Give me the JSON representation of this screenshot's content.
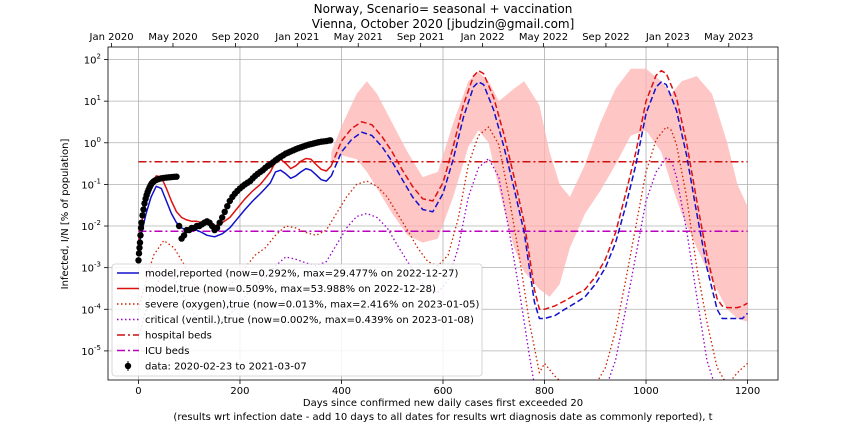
{
  "chart_data": {
    "type": "line",
    "title_line1": "Norway, Scenario= seasonal + vaccination",
    "title_line2": "Vienna, October 2020 [jbudzin@gmail.com]",
    "xlabel_line1": "Days since confirmed new daily cases first exceeded 20",
    "xlabel_line2": "(results wrt infection date - add 10 days to all dates for results wrt diagnosis date as commonly reported), t",
    "ylabel": "Infected, I/N [% of population]",
    "xlim": [
      -60,
      1260
    ],
    "ylim": [
      2e-06,
      200
    ],
    "yscale": "log",
    "grid": true,
    "legend_position": "lower-left",
    "x_ticks": [
      0,
      200,
      400,
      600,
      800,
      1000,
      1200
    ],
    "y_ticks": [
      {
        "value": 1e-05,
        "label": "10^-5"
      },
      {
        "value": 0.0001,
        "label": "10^-4"
      },
      {
        "value": 0.001,
        "label": "10^-3"
      },
      {
        "value": 0.01,
        "label": "10^-2"
      },
      {
        "value": 0.1,
        "label": "10^-1"
      },
      {
        "value": 1,
        "label": "10^0"
      },
      {
        "value": 10,
        "label": "10^1"
      },
      {
        "value": 100,
        "label": "10^2"
      }
    ],
    "top_axis_ticks": [
      {
        "label": "Jan 2020",
        "day": -53
      },
      {
        "label": "May 2020",
        "day": 68
      },
      {
        "label": "Sep 2020",
        "day": 191
      },
      {
        "label": "Jan 2021",
        "day": 313
      },
      {
        "label": "May 2021",
        "day": 433
      },
      {
        "label": "Sep 2021",
        "day": 556
      },
      {
        "label": "Jan 2022",
        "day": 678
      },
      {
        "label": "May 2022",
        "day": 798
      },
      {
        "label": "Sep 2022",
        "day": 921
      },
      {
        "label": "Jan 2023",
        "day": 1043
      },
      {
        "label": "May 2023",
        "day": 1163
      }
    ],
    "horizontal_lines": [
      {
        "name": "hospital beds",
        "value": 0.35,
        "color": "#cc1111"
      },
      {
        "name": "ICU beds",
        "value": 0.0075,
        "color": "#bb00bb"
      }
    ],
    "band": {
      "color": "#ffb3b3",
      "x": [
        380,
        400,
        430,
        450,
        470,
        500,
        530,
        560,
        590,
        620,
        650,
        670,
        690,
        710,
        740,
        760,
        790,
        810,
        830,
        850,
        880,
        910,
        940,
        970,
        1000,
        1030,
        1050,
        1070,
        1100,
        1130,
        1160,
        1180,
        1200
      ],
      "upper": [
        0.6,
        2.5,
        15,
        30,
        15,
        3,
        0.6,
        0.15,
        0.2,
        3,
        30,
        50,
        30,
        10,
        20,
        30,
        8,
        0.6,
        0.1,
        0.05,
        0.3,
        3,
        20,
        60,
        60,
        30,
        15,
        30,
        40,
        15,
        1,
        0.1,
        0.03
      ],
      "lower": [
        0.3,
        0.5,
        0.4,
        0.2,
        0.08,
        0.02,
        0.006,
        0.004,
        0.005,
        0.05,
        0.8,
        2,
        1,
        0.08,
        0.003,
        0.0008,
        0.0003,
        0.0002,
        0.0004,
        0.003,
        0.02,
        0.07,
        0.3,
        1.5,
        2,
        0.6,
        0.1,
        0.02,
        0.003,
        0.0005,
        0.0001,
        6e-05,
        5e-05
      ]
    },
    "series": [
      {
        "name": "model,reported (now=0.292%, max=29.477% on 2022-12-27)",
        "color": "#1111cc",
        "style": "solid",
        "x": [
          0,
          5,
          15,
          25,
          35,
          45,
          55,
          65,
          75,
          85,
          95,
          105,
          115,
          125,
          135,
          150,
          165,
          180,
          195,
          210,
          225,
          240,
          250,
          260,
          270,
          280,
          290,
          300,
          310,
          320,
          330,
          340,
          350,
          360,
          370,
          380
        ],
        "y": [
          0.003,
          0.006,
          0.02,
          0.05,
          0.09,
          0.08,
          0.04,
          0.02,
          0.012,
          0.009,
          0.008,
          0.008,
          0.008,
          0.007,
          0.006,
          0.0055,
          0.0065,
          0.009,
          0.015,
          0.025,
          0.04,
          0.06,
          0.08,
          0.11,
          0.2,
          0.22,
          0.18,
          0.14,
          0.16,
          0.2,
          0.24,
          0.22,
          0.17,
          0.13,
          0.12,
          0.16
        ]
      },
      {
        "name": "model,true (now=0.509%, max=53.988% on 2022-12-28)",
        "color": "#dd1111",
        "style": "solid",
        "x": [
          0,
          5,
          15,
          25,
          35,
          45,
          55,
          65,
          75,
          85,
          95,
          105,
          115,
          125,
          135,
          150,
          165,
          180,
          195,
          210,
          225,
          240,
          250,
          260,
          270,
          280,
          290,
          300,
          310,
          320,
          330,
          340,
          350,
          360,
          370,
          380
        ],
        "y": [
          0.004,
          0.01,
          0.04,
          0.1,
          0.16,
          0.15,
          0.08,
          0.04,
          0.022,
          0.016,
          0.014,
          0.013,
          0.013,
          0.012,
          0.011,
          0.01,
          0.012,
          0.016,
          0.027,
          0.045,
          0.07,
          0.1,
          0.14,
          0.2,
          0.35,
          0.4,
          0.32,
          0.24,
          0.28,
          0.36,
          0.42,
          0.4,
          0.3,
          0.23,
          0.21,
          0.28
        ]
      },
      {
        "name": "model,reported projection",
        "color": "#1111cc",
        "style": "dashed",
        "x": [
          380,
          400,
          420,
          440,
          460,
          480,
          500,
          520,
          540,
          560,
          580,
          600,
          620,
          640,
          660,
          670,
          680,
          700,
          720,
          740,
          760,
          770,
          780,
          790,
          800,
          820,
          840,
          860,
          880,
          900,
          920,
          940,
          960,
          980,
          1000,
          1020,
          1030,
          1040,
          1060,
          1080,
          1100,
          1120,
          1140,
          1150,
          1160,
          1170,
          1180,
          1190,
          1200
        ],
        "y": [
          0.16,
          0.6,
          1.2,
          1.8,
          1.5,
          0.8,
          0.35,
          0.13,
          0.05,
          0.025,
          0.022,
          0.06,
          0.4,
          4,
          22,
          29,
          25,
          6,
          0.8,
          0.08,
          0.007,
          0.001,
          0.00015,
          6e-05,
          6e-05,
          7e-05,
          0.0001,
          0.00014,
          0.0002,
          0.0004,
          0.001,
          0.004,
          0.03,
          0.3,
          5,
          22,
          29,
          25,
          6,
          0.5,
          0.02,
          0.001,
          0.0001,
          6e-05,
          6e-05,
          6e-05,
          6e-05,
          6e-05,
          8e-05
        ]
      },
      {
        "name": "model,true projection",
        "color": "#dd1111",
        "style": "dashed",
        "x": [
          380,
          400,
          420,
          440,
          460,
          480,
          500,
          520,
          540,
          560,
          580,
          600,
          620,
          640,
          660,
          670,
          680,
          700,
          720,
          740,
          760,
          770,
          780,
          790,
          800,
          820,
          840,
          860,
          880,
          900,
          920,
          940,
          960,
          980,
          1000,
          1020,
          1030,
          1040,
          1060,
          1080,
          1100,
          1120,
          1140,
          1150,
          1160,
          1170,
          1180,
          1190,
          1200
        ],
        "y": [
          0.28,
          1.1,
          2.2,
          3.2,
          2.7,
          1.4,
          0.6,
          0.22,
          0.09,
          0.045,
          0.04,
          0.11,
          0.8,
          8,
          40,
          54,
          46,
          12,
          1.6,
          0.15,
          0.012,
          0.002,
          0.0003,
          0.0001,
          0.0001,
          0.00012,
          0.00016,
          0.00022,
          0.0003,
          0.0006,
          0.0016,
          0.007,
          0.06,
          0.6,
          10,
          42,
          54,
          46,
          12,
          1,
          0.04,
          0.002,
          0.00018,
          0.00012,
          0.00011,
          0.00011,
          0.00011,
          0.00012,
          0.00014
        ]
      },
      {
        "name": "severe (oxygen),true (now=0.013%, max=2.416% on 2023-01-05)",
        "color": "#cc2200",
        "style": "dotted",
        "x": [
          0,
          10,
          20,
          30,
          50,
          70,
          90,
          110,
          130,
          150,
          170,
          190,
          210,
          230,
          250,
          270,
          290,
          310,
          330,
          350,
          370,
          390,
          410,
          430,
          450,
          470,
          490,
          510,
          530,
          550,
          570,
          590,
          610,
          630,
          650,
          670,
          690,
          710,
          730,
          750,
          770,
          790,
          800,
          820,
          840,
          860,
          880,
          900,
          920,
          940,
          960,
          980,
          1000,
          1020,
          1040,
          1050,
          1060,
          1080,
          1100,
          1120,
          1140,
          1160,
          1180,
          1200
        ],
        "y": [
          0.0001,
          0.0003,
          0.0008,
          0.002,
          0.0045,
          0.003,
          0.0012,
          0.0004,
          0.00025,
          0.00025,
          0.0003,
          0.0005,
          0.001,
          0.002,
          0.003,
          0.006,
          0.01,
          0.009,
          0.007,
          0.006,
          0.008,
          0.02,
          0.05,
          0.1,
          0.12,
          0.09,
          0.05,
          0.02,
          0.008,
          0.003,
          0.0014,
          0.0011,
          0.002,
          0.015,
          0.3,
          1.5,
          2.4,
          0.9,
          0.05,
          0.002,
          5e-05,
          3e-06,
          5e-06,
          2.5e-06,
          1.5e-06,
          1e-06,
          1e-06,
          1.5e-06,
          4e-06,
          3e-05,
          0.0005,
          0.01,
          0.2,
          1.2,
          2.4,
          2,
          0.9,
          0.05,
          0.001,
          5e-05,
          4e-06,
          1.5e-06,
          3e-06,
          5e-06
        ]
      },
      {
        "name": "critical (ventil.),true (now=0.002%, max=0.439% on 2023-01-08)",
        "color": "#9900cc",
        "style": "dotted",
        "x": [
          0,
          10,
          20,
          30,
          50,
          70,
          90,
          110,
          130,
          150,
          170,
          190,
          210,
          230,
          250,
          270,
          290,
          310,
          330,
          350,
          370,
          390,
          410,
          430,
          450,
          470,
          490,
          510,
          530,
          550,
          570,
          590,
          610,
          630,
          650,
          670,
          690,
          710,
          730,
          750,
          770,
          780,
          800,
          820,
          840,
          860,
          880,
          900,
          920,
          940,
          960,
          980,
          1000,
          1020,
          1040,
          1050,
          1060,
          1080,
          1100,
          1120,
          1140,
          1160,
          1180,
          1200
        ],
        "y": [
          2e-05,
          6e-05,
          0.00015,
          0.0003,
          0.0008,
          0.0006,
          0.0002,
          8e-05,
          5e-05,
          5e-05,
          6e-05,
          0.0001,
          0.0002,
          0.0004,
          0.0006,
          0.0011,
          0.0018,
          0.0016,
          0.0013,
          0.0011,
          0.0014,
          0.0035,
          0.009,
          0.017,
          0.02,
          0.016,
          0.009,
          0.0035,
          0.0014,
          0.0006,
          0.0003,
          0.00025,
          0.0005,
          0.003,
          0.05,
          0.25,
          0.42,
          0.15,
          0.008,
          0.0003,
          8e-06,
          1.5e-06,
          1e-06,
          1e-06,
          1e-06,
          1e-06,
          1e-06,
          1e-06,
          1.2e-06,
          6e-06,
          0.0001,
          0.002,
          0.04,
          0.2,
          0.43,
          0.38,
          0.15,
          0.008,
          0.0002,
          6e-06,
          1e-06,
          1e-06,
          1e-06,
          1e-06
        ]
      }
    ],
    "data_points": {
      "name": "data: 2020-02-23 to 2021-03-07",
      "color": "#000000",
      "x": [
        0,
        1,
        2,
        3,
        4,
        5,
        6,
        8,
        10,
        12,
        14,
        16,
        18,
        20,
        22,
        24,
        26,
        28,
        30,
        33,
        36,
        40,
        45,
        50,
        55,
        60,
        65,
        70,
        75,
        80,
        85,
        90,
        95,
        100,
        105,
        110,
        115,
        120,
        125,
        130,
        135,
        140,
        145,
        150,
        155,
        160,
        165,
        170,
        175,
        180,
        185,
        190,
        195,
        200,
        205,
        210,
        215,
        220,
        225,
        230,
        235,
        240,
        245,
        250,
        255,
        260,
        265,
        270,
        275,
        280,
        285,
        290,
        295,
        300,
        305,
        310,
        315,
        320,
        325,
        330,
        335,
        340,
        345,
        350,
        355,
        360,
        365,
        370,
        375,
        378
      ],
      "y": [
        0.0015,
        0.0022,
        0.003,
        0.004,
        0.006,
        0.009,
        0.012,
        0.018,
        0.025,
        0.035,
        0.045,
        0.055,
        0.065,
        0.075,
        0.085,
        0.095,
        0.105,
        0.112,
        0.118,
        0.125,
        0.13,
        0.135,
        0.14,
        0.143,
        0.146,
        0.148,
        0.15,
        0.152,
        0.153,
        0.01,
        0.005,
        0.006,
        0.008,
        0.008,
        0.009,
        0.009,
        0.01,
        0.01,
        0.011,
        0.012,
        0.013,
        0.012,
        0.01,
        0.008,
        0.009,
        0.012,
        0.016,
        0.022,
        0.03,
        0.04,
        0.05,
        0.06,
        0.07,
        0.08,
        0.09,
        0.1,
        0.11,
        0.12,
        0.14,
        0.16,
        0.18,
        0.2,
        0.22,
        0.25,
        0.28,
        0.3,
        0.34,
        0.38,
        0.42,
        0.46,
        0.5,
        0.55,
        0.58,
        0.62,
        0.66,
        0.7,
        0.74,
        0.78,
        0.82,
        0.86,
        0.9,
        0.93,
        0.96,
        1.0,
        1.03,
        1.06,
        1.08,
        1.1,
        1.13,
        1.15
      ]
    },
    "legend_order": [
      "model,reported (now=0.292%, max=29.477% on 2022-12-27)",
      "model,true (now=0.509%, max=53.988% on 2022-12-28)",
      "severe (oxygen),true (now=0.013%, max=2.416% on 2023-01-05)",
      "critical (ventil.),true (now=0.002%, max=0.439% on 2023-01-08)",
      "hospital beds",
      "ICU beds",
      "data: 2020-02-23 to 2021-03-07"
    ]
  }
}
